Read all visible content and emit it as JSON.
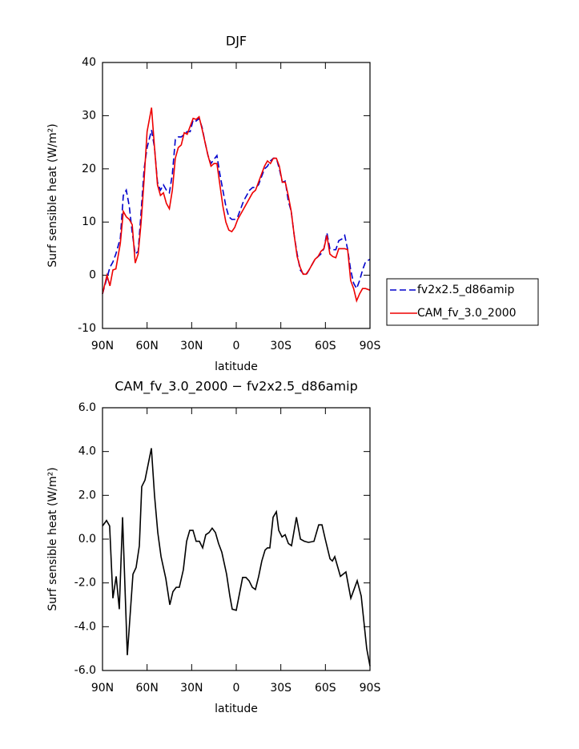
{
  "chart_data": [
    {
      "type": "line",
      "title": "DJF",
      "xlabel": "latitude",
      "ylabel": "Surf sensible heat (W/m²)",
      "x": [
        90,
        87,
        85,
        83,
        81,
        78,
        76,
        74,
        72,
        70,
        68,
        66,
        64,
        62,
        60,
        57,
        55,
        53,
        51,
        49,
        47,
        45,
        43,
        41,
        39,
        37,
        35,
        33,
        31,
        29,
        27,
        25,
        23,
        21,
        19,
        17,
        15,
        13,
        11,
        9,
        7,
        5,
        3,
        1,
        -1,
        -3,
        -5,
        -7,
        -9,
        -11,
        -13,
        -15,
        -17,
        -19,
        -21,
        -23,
        -25,
        -27,
        -29,
        -31,
        -33,
        -35,
        -37,
        -39,
        -41,
        -43,
        -45,
        -47,
        -49,
        -51,
        -53,
        -55,
        -57,
        -59,
        -61,
        -63,
        -65,
        -67,
        -69,
        -71,
        -73,
        -75,
        -77,
        -79,
        -81,
        -83,
        -85,
        -87,
        -90
      ],
      "xlim": [
        90,
        -90
      ],
      "xticks": [
        {
          "value": 90,
          "label": "90N"
        },
        {
          "value": 60,
          "label": "60N"
        },
        {
          "value": 30,
          "label": "30N"
        },
        0,
        {
          "value": -30,
          "label": "30S"
        },
        {
          "value": -60,
          "label": "60S"
        },
        {
          "value": -90,
          "label": "90S"
        }
      ],
      "ylim": [
        -10,
        40
      ],
      "yticks": [
        -10,
        0,
        10,
        20,
        30,
        40
      ],
      "legend": "right",
      "series": [
        {
          "name": "fv2x2.5_d86amip",
          "color": "#0000cc",
          "linestyle": "dashed",
          "values": [
            -3.5,
            -0.5,
            1.5,
            2.5,
            4,
            7,
            15,
            16,
            13,
            8,
            4,
            4.5,
            12,
            20,
            24,
            27.3,
            24,
            17.5,
            16,
            17,
            16,
            15.5,
            19,
            25.5,
            26,
            26,
            26.5,
            27,
            27,
            29.2,
            29,
            29.5,
            27.8,
            25,
            22.5,
            21,
            21.8,
            22.5,
            19,
            16,
            13,
            11,
            10.5,
            10.5,
            11,
            12.5,
            14,
            15,
            16,
            16.5,
            16.5,
            17,
            18.5,
            20,
            20.5,
            21.5,
            22,
            22,
            20,
            17.5,
            17.7,
            14,
            12,
            7.5,
            4,
            1,
            0.3,
            0,
            1,
            2,
            3,
            3.5,
            4,
            5,
            8,
            5,
            4.8,
            4.8,
            6.5,
            6.8,
            7.5,
            4.8,
            1,
            -1.5,
            -2.5,
            -1,
            1,
            2.5,
            3
          ]
        },
        {
          "name": "CAM_fv_3.0_2000",
          "color": "#ee0000",
          "linestyle": "solid",
          "values": [
            -3.5,
            0,
            -2,
            1,
            1.2,
            6,
            12,
            11,
            10.5,
            9.5,
            2.3,
            4,
            10,
            18,
            27,
            31.5,
            24,
            17,
            15,
            15.5,
            13.5,
            12.5,
            16,
            22,
            24,
            24.5,
            26.8,
            26.5,
            28,
            29.5,
            29.3,
            29.8,
            27.5,
            25,
            22.5,
            20.5,
            21,
            21,
            17,
            13,
            10,
            8.5,
            8.2,
            9,
            10.5,
            11.5,
            12.5,
            13.5,
            14.5,
            15.5,
            16,
            17.5,
            19,
            20.5,
            21.5,
            21,
            22,
            22,
            20.5,
            17.5,
            17.5,
            15,
            12,
            7.5,
            3.5,
            1.5,
            0.2,
            0.2,
            1,
            2,
            3,
            3.5,
            4.5,
            5,
            7.5,
            4,
            3.5,
            3.3,
            5,
            5,
            5,
            4.8,
            -1,
            -2.5,
            -4.8,
            -3.5,
            -2.5,
            -2.5,
            -2.8
          ]
        }
      ]
    },
    {
      "type": "line",
      "title": "CAM_fv_3.0_2000 − fv2x2.5_d86amip",
      "xlabel": "latitude",
      "ylabel": "Surf sensible heat (W/m²)",
      "x": [
        90,
        87.3,
        85.2,
        83,
        80.8,
        78.7,
        76.5,
        73.3,
        69.5,
        67.4,
        65.2,
        63.6,
        61.4,
        57.1,
        55,
        52.8,
        50.6,
        47.4,
        44.7,
        42.6,
        40.4,
        38.3,
        35.6,
        33.4,
        31.3,
        29.1,
        27,
        24.8,
        22.6,
        20.5,
        18.3,
        16.2,
        14,
        11.9,
        9.7,
        6.5,
        4.3,
        2.7,
        0,
        -4.3,
        -6.5,
        -8.6,
        -10.8,
        -12.9,
        -15.1,
        -17.2,
        -19.4,
        -21,
        -22.6,
        -24.8,
        -27,
        -28.6,
        -30.8,
        -32.9,
        -35.1,
        -37.2,
        -40.5,
        -43.2,
        -45.9,
        -48.6,
        -52.3,
        -55.5,
        -57.7,
        -59.9,
        -63.1,
        -64.7,
        -66.3,
        -70.1,
        -73.8,
        -77.1,
        -81.4,
        -84.1,
        -87.8,
        -90
      ],
      "values": [
        0.6,
        0.85,
        0.6,
        -2.7,
        -1.7,
        -3.2,
        1.0,
        -5.3,
        -1.6,
        -1.3,
        -0.3,
        2.4,
        2.7,
        4.15,
        2.0,
        0.3,
        -0.8,
        -1.8,
        -3.0,
        -2.4,
        -2.2,
        -2.2,
        -1.4,
        -0.1,
        0.4,
        0.4,
        -0.1,
        -0.1,
        -0.4,
        0.2,
        0.3,
        0.5,
        0.3,
        -0.2,
        -0.6,
        -1.6,
        -2.6,
        -3.2,
        -3.25,
        -1.75,
        -1.75,
        -1.9,
        -2.2,
        -2.3,
        -1.7,
        -1.0,
        -0.5,
        -0.4,
        -0.4,
        1.0,
        1.25,
        0.4,
        0.1,
        0.2,
        -0.2,
        -0.3,
        1.0,
        0.0,
        -0.1,
        -0.15,
        -0.1,
        0.65,
        0.65,
        0.0,
        -0.9,
        -1.0,
        -0.8,
        -1.7,
        -1.5,
        -2.7,
        -1.9,
        -2.6,
        -5.0,
        -5.8
      ],
      "color": "#000000",
      "linestyle": "solid",
      "xlim": [
        90,
        -90
      ],
      "xticks": [
        {
          "value": 90,
          "label": "90N"
        },
        {
          "value": 60,
          "label": "60N"
        },
        {
          "value": 30,
          "label": "30N"
        },
        0,
        {
          "value": -30,
          "label": "30S"
        },
        {
          "value": -60,
          "label": "60S"
        },
        {
          "value": -90,
          "label": "90S"
        }
      ],
      "ylim": [
        -6,
        6
      ],
      "yticks": [
        {
          "value": -6,
          "label": "-6.0"
        },
        {
          "value": -4,
          "label": "-4.0"
        },
        {
          "value": -2,
          "label": "-2.0"
        },
        {
          "value": 0,
          "label": "0.0"
        },
        {
          "value": 2,
          "label": "2.0"
        },
        {
          "value": 4,
          "label": "4.0"
        },
        {
          "value": 6,
          "label": "6.0"
        }
      ]
    }
  ]
}
